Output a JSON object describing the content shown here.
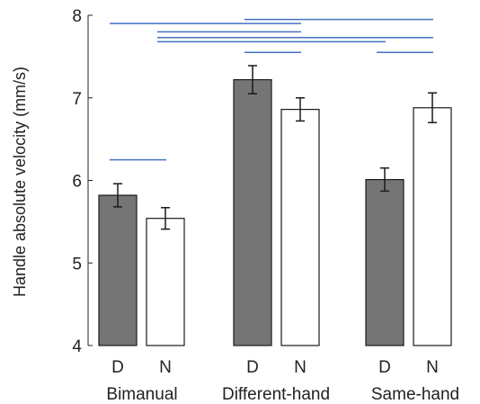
{
  "chart_data": {
    "type": "bar",
    "title": "",
    "ylabel": "Handle absolute velocity (mm/s)",
    "xlabel": "",
    "ylim": [
      4,
      8
    ],
    "yticks": [
      4,
      5,
      6,
      7,
      8
    ],
    "grid": false,
    "groups": [
      "Bimanual",
      "Different-hand",
      "Same-hand"
    ],
    "bars": [
      {
        "group": "Bimanual",
        "label": "D",
        "value": 5.82,
        "error": 0.14
      },
      {
        "group": "Bimanual",
        "label": "N",
        "value": 5.54,
        "error": 0.13
      },
      {
        "group": "Different-hand",
        "label": "D",
        "value": 7.22,
        "error": 0.17
      },
      {
        "group": "Different-hand",
        "label": "N",
        "value": 6.86,
        "error": 0.14
      },
      {
        "group": "Same-hand",
        "label": "D",
        "value": 6.01,
        "error": 0.14
      },
      {
        "group": "Same-hand",
        "label": "N",
        "value": 6.88,
        "error": 0.18
      }
    ],
    "significance": [
      {
        "from": 0,
        "to": 1,
        "y": 6.25
      },
      {
        "from": 0,
        "to": 3,
        "y": 7.9
      },
      {
        "from": 2,
        "to": 5,
        "y": 7.95
      },
      {
        "from": 1,
        "to": 3,
        "y": 7.8
      },
      {
        "from": 1,
        "to": 5,
        "y": 7.73
      },
      {
        "from": 1,
        "to": 4,
        "y": 7.68
      },
      {
        "from": 2,
        "to": 3,
        "y": 7.55
      },
      {
        "from": 4,
        "to": 5,
        "y": 7.55
      }
    ],
    "colors": {
      "D": "#757575",
      "N": "#ffffff",
      "significance": "#4472c4"
    }
  }
}
